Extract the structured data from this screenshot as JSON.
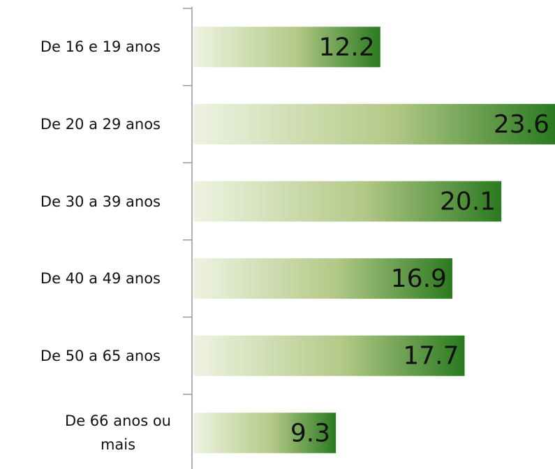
{
  "chart_data": {
    "type": "bar",
    "orientation": "horizontal",
    "categories": [
      "De 16 e 19 anos",
      "De 20 a 29 anos",
      "De 30 a 39 anos",
      "De 40 a 49 anos",
      "De 50 a 65 anos",
      "De 66 anos ou\nmais"
    ],
    "values": [
      12.2,
      23.6,
      20.1,
      16.9,
      17.7,
      9.3
    ],
    "color": "#2a7a1f",
    "xlim": [
      0,
      23.6
    ]
  }
}
